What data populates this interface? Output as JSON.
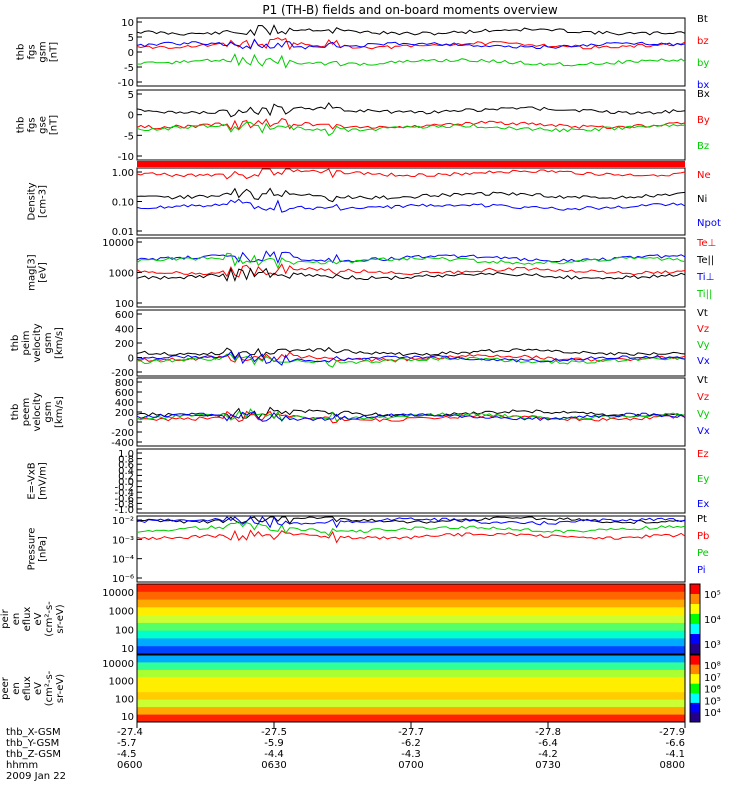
{
  "title": "P1 (TH-B) fields and on-board moments overview",
  "colors": {
    "black": "#000000",
    "red": "#ff0000",
    "green": "#00cc00",
    "blue": "#0000ff"
  },
  "ephemeris": {
    "labels": [
      "thb_X-GSM",
      "thb_Y-GSM",
      "thb_Z-GSM",
      "hhmm",
      "2009 Jan 22"
    ],
    "columns": [
      {
        "x": "-27.4",
        "y": "-5.7",
        "z": "-4.5",
        "time": "0600"
      },
      {
        "x": "-27.5",
        "y": "-5.9",
        "z": "-4.4",
        "time": "0630"
      },
      {
        "x": "-27.7",
        "y": "-6.2",
        "z": "-4.3",
        "time": "0700"
      },
      {
        "x": "-27.8",
        "y": "-6.4",
        "z": "-4.2",
        "time": "0730"
      },
      {
        "x": "-27.9",
        "y": "-6.6",
        "z": "-4.1",
        "time": "0800"
      }
    ]
  },
  "chart_data": {
    "type": "line",
    "x_range": [
      "06:00",
      "08:00"
    ],
    "panels": [
      {
        "id": "fgs",
        "ylabel": [
          "thb",
          "fgs",
          "gsm",
          "[nT]"
        ],
        "ylim": [
          -10,
          10
        ],
        "ticks": [
          "10",
          "5",
          "0",
          "-5",
          "-10"
        ],
        "series": [
          {
            "name": "Bt",
            "color": "black",
            "level": 6
          },
          {
            "name": "bz",
            "color": "red",
            "level": 2
          },
          {
            "name": "by",
            "color": "green",
            "level": -3
          },
          {
            "name": "bx",
            "color": "blue",
            "level": 2
          }
        ]
      },
      {
        "id": "fgs_gse",
        "ylabel": [
          "thb",
          "fgs",
          "gse",
          "[nT]"
        ],
        "ylim": [
          -12,
          12
        ],
        "ticks": [
          "5",
          "0",
          "-5",
          "-10"
        ],
        "series": [
          {
            "name": "Bx",
            "color": "black",
            "level": 5
          },
          {
            "name": "By",
            "color": "red",
            "level": 0
          },
          {
            "name": "Bz",
            "color": "green",
            "level": -1
          }
        ]
      },
      {
        "id": "density",
        "ylabel": [
          "Density",
          "[cm-3]"
        ],
        "ylim": [
          0.01,
          1.0
        ],
        "log": true,
        "ticks": [
          "1.00",
          "0.10",
          "0.01"
        ],
        "series": [
          {
            "name": "Ne",
            "color": "red",
            "level": 0.7
          },
          {
            "name": "Ni",
            "color": "black",
            "level": 0.15
          },
          {
            "name": "Npot",
            "color": "blue",
            "level": 0.07
          }
        ]
      },
      {
        "id": "temperature",
        "ylabel": [
          "mag[3]",
          "[eV]"
        ],
        "ylim": [
          100,
          10000
        ],
        "log": true,
        "ticks": [
          "10000",
          "1000",
          "100"
        ],
        "series": [
          {
            "name": "Te⊥",
            "color": "red",
            "level": 1100
          },
          {
            "name": "Te||",
            "color": "black",
            "level": 800
          },
          {
            "name": "Ti⊥",
            "color": "blue",
            "level": 2600
          },
          {
            "name": "Ti||",
            "color": "green",
            "level": 2200
          }
        ]
      },
      {
        "id": "peim_velocity",
        "ylabel": [
          "thb",
          "peim",
          "velocity",
          "gsm",
          "[km/s]"
        ],
        "ylim": [
          -200,
          600
        ],
        "ticks": [
          "600",
          "400",
          "200",
          "0",
          "-200"
        ],
        "series": [
          {
            "name": "Vt",
            "color": "black",
            "level": 90
          },
          {
            "name": "Vz",
            "color": "red",
            "level": 20
          },
          {
            "name": "Vy",
            "color": "green",
            "level": -10
          },
          {
            "name": "Vx",
            "color": "blue",
            "level": 10
          }
        ]
      },
      {
        "id": "peem_velocity",
        "ylabel": [
          "thb",
          "peem",
          "velocity",
          "gsm",
          "[km/s]"
        ],
        "ylim": [
          -600,
          800
        ],
        "ticks": [
          "800",
          "600",
          "400",
          "200",
          "0",
          "-200",
          "-400"
        ],
        "series": [
          {
            "name": "Vt",
            "color": "black",
            "level": 70
          },
          {
            "name": "Vz",
            "color": "red",
            "level": -20
          },
          {
            "name": "Vy",
            "color": "green",
            "level": 10
          },
          {
            "name": "Vx",
            "color": "blue",
            "level": 0
          }
        ]
      },
      {
        "id": "efield",
        "ylabel": [
          "E=-VxB",
          "[mV/m]"
        ],
        "ylim": [
          -1,
          1
        ],
        "ticks": [
          "1.0",
          "0.8",
          "0.6",
          "0.4",
          "0.2",
          "0.0",
          "-0.2",
          "-0.4",
          "-0.6",
          "-0.8",
          "-1.0"
        ],
        "series": [
          {
            "name": "Ez",
            "color": "red"
          },
          {
            "name": "Ey",
            "color": "green"
          },
          {
            "name": "Ex",
            "color": "blue"
          }
        ]
      },
      {
        "id": "pressure",
        "ylabel": [
          "Pressure",
          "[nPa]"
        ],
        "ylim": [
          1e-06,
          0.1
        ],
        "log": true,
        "ticks": [
          "10⁻²",
          "10⁻³",
          "10⁻⁴",
          "10⁻⁶"
        ],
        "series": [
          {
            "name": "Pt",
            "color": "black",
            "level": 0.05
          },
          {
            "name": "Pb",
            "color": "red",
            "level": 0.003
          },
          {
            "name": "Pe",
            "color": "green",
            "level": 0.01
          },
          {
            "name": "Pi",
            "color": "blue",
            "level": 0.04
          }
        ]
      }
    ],
    "spectrograms": [
      {
        "id": "peir",
        "ylabel": [
          "thb",
          "peir",
          "en",
          "eflux",
          "eV",
          "(cm²-s-",
          "sr-eV)"
        ],
        "ticks": [
          "10000",
          "1000",
          "100",
          "10"
        ],
        "colorbar_ticks": [
          "10⁵",
          "10⁴",
          "10³"
        ]
      },
      {
        "id": "peer",
        "ylabel": [
          "thb",
          "peer",
          "en",
          "eflux",
          "eV",
          "(cm²-s-",
          "sr-eV)"
        ],
        "ticks": [
          "10000",
          "1000",
          "100",
          "10"
        ],
        "colorbar_ticks": [
          "10⁸",
          "10⁷",
          "10⁶",
          "10⁵",
          "10⁴"
        ]
      }
    ]
  }
}
